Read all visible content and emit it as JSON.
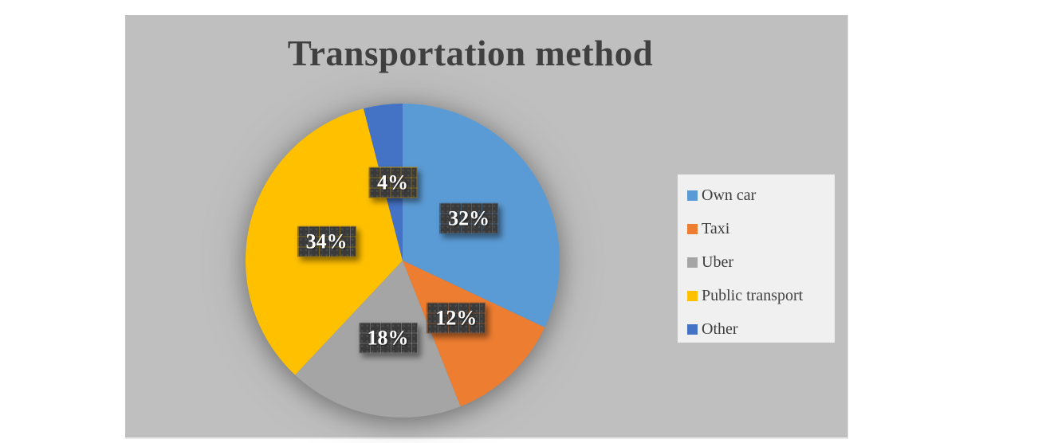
{
  "window": {
    "page_background": "#FFFFFF",
    "chart_background": "#BFBFBF",
    "title_color": "#404040",
    "legend_background": "#F0F0F0",
    "data_label_box_color": "#3A3A3A",
    "data_label_text_color": "#FFFFFF"
  },
  "chart_data": {
    "type": "pie",
    "title": "Transportation method",
    "categories": [
      "Own car",
      "Taxi",
      "Uber",
      "Public transport",
      "Other"
    ],
    "values": [
      32,
      12,
      18,
      34,
      4
    ],
    "labels": [
      "32%",
      "12%",
      "18%",
      "34%",
      "4%"
    ],
    "colors": [
      "#5B9BD5",
      "#ED7D31",
      "#A5A5A5",
      "#FFC000",
      "#4472C4"
    ],
    "label_grid_colors": [
      "#5B9BD5",
      "#ED7D31",
      "#BDBDBD",
      "#FFC000",
      "#FFC000"
    ],
    "start_angle_deg": 0,
    "clockwise": true,
    "label_radius_fraction": 0.5,
    "legend_position": "right",
    "legend_entries": [
      "Own car",
      "Taxi",
      "Uber",
      "Public transport",
      "Other"
    ]
  }
}
